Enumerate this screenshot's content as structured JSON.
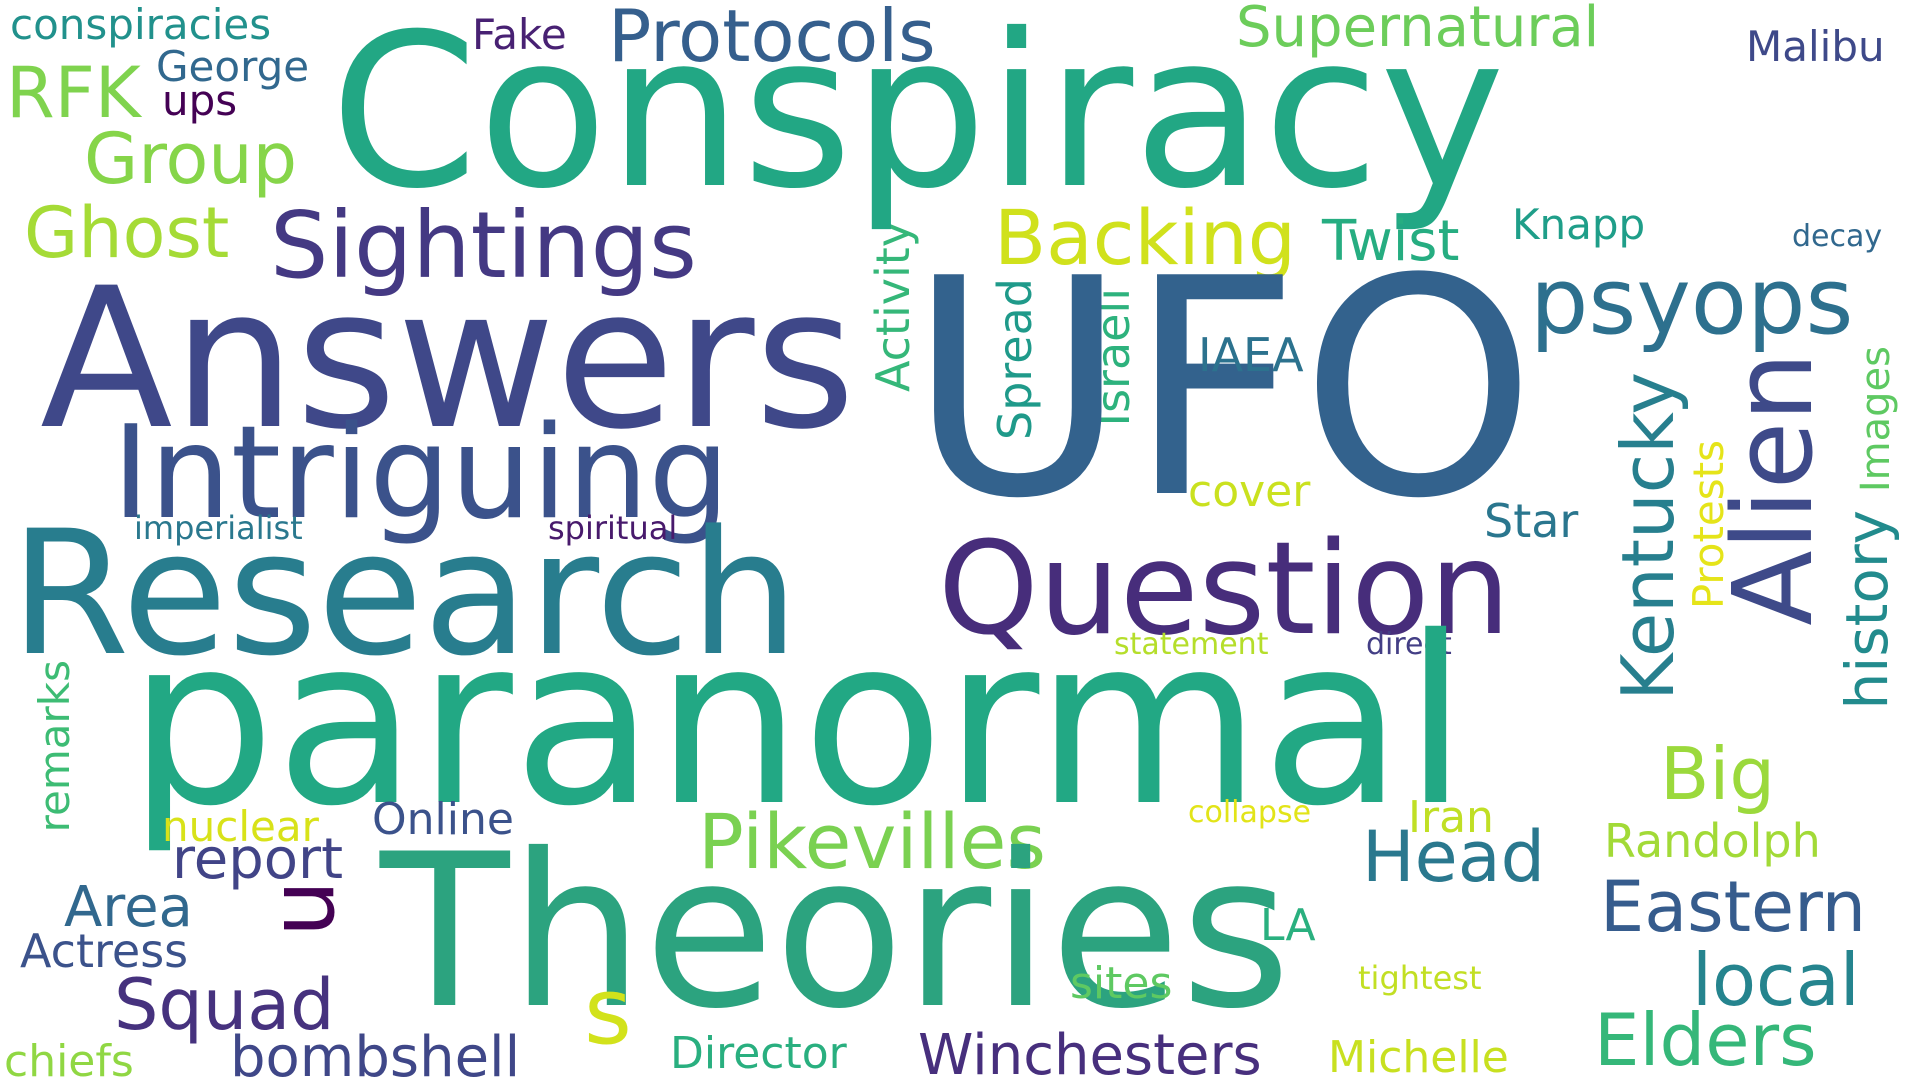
{
  "words": {
    "conspiracy": {
      "text": "Conspiracy",
      "color": "#22a784"
    },
    "ufo": {
      "text": "UFO",
      "color": "#33628d"
    },
    "answers": {
      "text": "Answers",
      "color": "#3f4889"
    },
    "paranormal": {
      "text": "paranormal",
      "color": "#22a884"
    },
    "theories": {
      "text": "Theories",
      "color": "#2ca37f"
    },
    "research": {
      "text": "Research",
      "color": "#287d8e"
    },
    "intriguing": {
      "text": "Intriguing",
      "color": "#3b528b"
    },
    "question": {
      "text": "Question",
      "color": "#472d7b"
    },
    "sightings": {
      "text": "Sightings",
      "color": "#443983"
    },
    "alien": {
      "text": "Alien",
      "color": "#3e4a89"
    },
    "psyops": {
      "text": "psyops",
      "color": "#2d708e"
    },
    "protocols": {
      "text": "Protocols",
      "color": "#355f8d"
    },
    "supernatural": {
      "text": "Supernatural",
      "color": "#6ccd5a"
    },
    "backing": {
      "text": "Backing",
      "color": "#d0e11c"
    },
    "twist": {
      "text": "Twist",
      "color": "#26ad81"
    },
    "ghost": {
      "text": "Ghost",
      "color": "#a5db36"
    },
    "group": {
      "text": "Group",
      "color": "#86d549"
    },
    "rfk": {
      "text": "RFK",
      "color": "#7fd34e"
    },
    "george": {
      "text": "George",
      "color": "#31688e"
    },
    "ups": {
      "text": "ups",
      "color": "#440154"
    },
    "conspiracies": {
      "text": "conspiracies",
      "color": "#21918c"
    },
    "fake": {
      "text": "Fake",
      "color": "#482173"
    },
    "malibu": {
      "text": "Malibu",
      "color": "#3e4989"
    },
    "knapp": {
      "text": "Knapp",
      "color": "#1f9e89"
    },
    "decay": {
      "text": "decay",
      "color": "#31688e"
    },
    "iaea": {
      "text": "IAEA",
      "color": "#2c728e"
    },
    "activity": {
      "text": "Activity",
      "color": "#35b779"
    },
    "spread": {
      "text": "Spread",
      "color": "#1f9a8a"
    },
    "israeli": {
      "text": "Israeli",
      "color": "#2db27d"
    },
    "kentucky": {
      "text": "Kentucky",
      "color": "#277f8e"
    },
    "images": {
      "text": "Images",
      "color": "#5ec962"
    },
    "history": {
      "text": "history",
      "color": "#228b8d"
    },
    "protests": {
      "text": "Protests",
      "color": "#e5e419"
    },
    "star": {
      "text": "Star",
      "color": "#2a768e"
    },
    "cover": {
      "text": "cover",
      "color": "#cae11f"
    },
    "imperialist": {
      "text": "imperialist",
      "color": "#2a788e"
    },
    "spiritual": {
      "text": "spiritual",
      "color": "#481a6c"
    },
    "statement": {
      "text": "statement",
      "color": "#b5de2b"
    },
    "direct": {
      "text": "direct",
      "color": "#433e85"
    },
    "big": {
      "text": "Big",
      "color": "#9bd93c"
    },
    "head": {
      "text": "Head",
      "color": "#2a788e"
    },
    "pikevilles": {
      "text": "Pikevilles",
      "color": "#7ad151"
    },
    "report": {
      "text": "report",
      "color": "#414487"
    },
    "u": {
      "text": "u",
      "color": "#440154"
    },
    "online": {
      "text": "Online",
      "color": "#3b528b"
    },
    "nuclear": {
      "text": "nuclear",
      "color": "#d8e219"
    },
    "remarks": {
      "text": "remarks",
      "color": "#3dbc74"
    },
    "area": {
      "text": "Area",
      "color": "#31688e"
    },
    "actress": {
      "text": "Actress",
      "color": "#3b528b"
    },
    "squad": {
      "text": "Squad",
      "color": "#46327e"
    },
    "s": {
      "text": "s",
      "color": "#d2e21b"
    },
    "eastern": {
      "text": "Eastern",
      "color": "#365c8d"
    },
    "local": {
      "text": "local",
      "color": "#25848e"
    },
    "elders": {
      "text": "Elders",
      "color": "#35b779"
    },
    "collapse": {
      "text": "collapse",
      "color": "#e2e418"
    },
    "iran": {
      "text": "Iran",
      "color": "#c0df25"
    },
    "randolph": {
      "text": "Randolph",
      "color": "#a2da37"
    },
    "la": {
      "text": "LA",
      "color": "#2ab07f"
    },
    "sites": {
      "text": "sites",
      "color": "#5ec962"
    },
    "tightest": {
      "text": "tightest",
      "color": "#c2df23"
    },
    "michelle": {
      "text": "Michelle",
      "color": "#c8e020"
    },
    "winchesters": {
      "text": "Winchesters",
      "color": "#472f7d"
    },
    "director": {
      "text": "Director",
      "color": "#29af7f"
    },
    "bombshell": {
      "text": "bombshell",
      "color": "#3f4788"
    },
    "chiefs": {
      "text": "chiefs",
      "color": "#90d743"
    }
  }
}
